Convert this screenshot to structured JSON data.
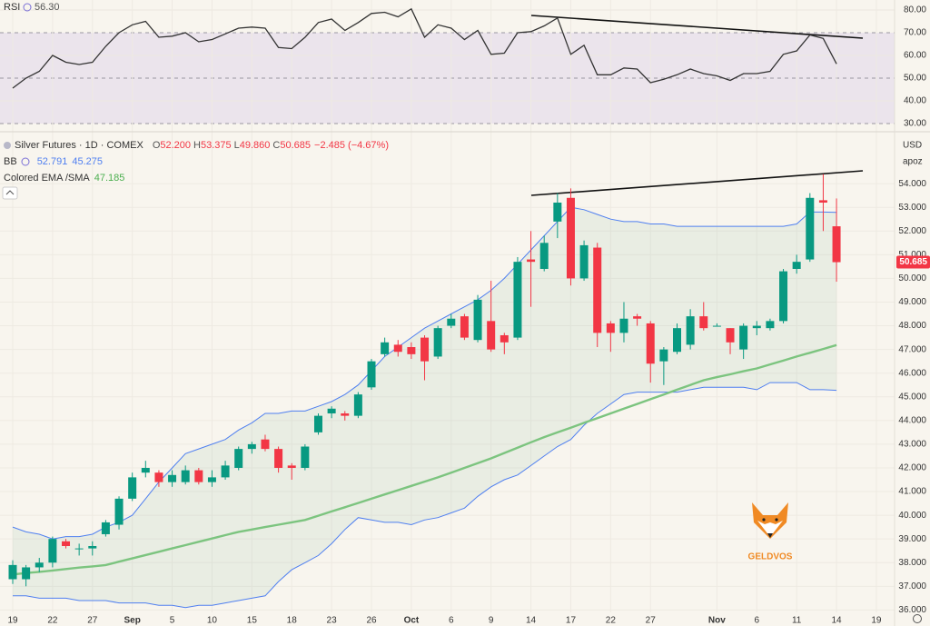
{
  "chart_data": [
    {
      "type": "line",
      "title": "RSI",
      "last_label": "56.30",
      "color": "#333333",
      "band_color": "#ebe4ec",
      "values": [
        45.6,
        50,
        53,
        60,
        57,
        56,
        57,
        64,
        70,
        73.5,
        75,
        68,
        68.5,
        70,
        66,
        67,
        69.5,
        72,
        72.5,
        72,
        63.5,
        63,
        68,
        74.5,
        76,
        71,
        74.5,
        78.5,
        79,
        77,
        80.5,
        68,
        73.5,
        72,
        67,
        71,
        60.5,
        61,
        70,
        70.5,
        73,
        76.5,
        60.5,
        64.5,
        51.5,
        51.5,
        54.5,
        54,
        48,
        49.5,
        51.5,
        54,
        52,
        51,
        49,
        52,
        52,
        53,
        60.5,
        62,
        69,
        67.5,
        56.3,
        null,
        null,
        null
      ],
      "ylim": [
        28.4,
        84.4
      ],
      "yticks": [
        {
          "value": 80,
          "label": "80.00"
        },
        {
          "value": 70,
          "label": "70.00"
        },
        {
          "value": 60,
          "label": "60.00"
        },
        {
          "value": 50,
          "label": "50.00"
        },
        {
          "value": 40,
          "label": "40.00"
        },
        {
          "value": 30,
          "label": "30.00"
        }
      ],
      "grid": true
    },
    {
      "type": "candlestick",
      "title": "Silver Futures · 1D · COMEX",
      "ohlc_letters": [
        "O",
        "H",
        "L",
        "C"
      ],
      "ohlc_labels": [
        "52.200",
        "53.375",
        "49.860",
        "50.685"
      ],
      "change": "−2.485 (−4.67%)",
      "bb_title": "BB",
      "ema_title": "Colored EMA /SMA",
      "currency": "USD",
      "scale_menu": "apoz",
      "watermark": "GELDVOS",
      "up_color": "#089981",
      "down_color": "#f23645",
      "categories": [
        "19",
        null,
        null,
        "22",
        null,
        null,
        "27",
        null,
        null,
        "Sep",
        null,
        null,
        "5",
        null,
        null,
        "10",
        null,
        null,
        "15",
        null,
        null,
        "18",
        null,
        null,
        "23",
        null,
        null,
        "26",
        null,
        null,
        "Oct",
        null,
        null,
        "6",
        null,
        null,
        "9",
        null,
        null,
        "14",
        null,
        null,
        "17",
        null,
        null,
        "22",
        null,
        null,
        "27",
        null,
        null,
        null,
        null,
        "Nov",
        null,
        null,
        "6",
        null,
        null,
        "11",
        null,
        null,
        "14",
        null,
        null,
        "19"
      ],
      "open": [
        37.3,
        37.3,
        37.8,
        38.0,
        38.9,
        38.6,
        38.6,
        39.2,
        39.6,
        40.7,
        41.8,
        41.8,
        41.4,
        41.4,
        41.9,
        41.4,
        41.6,
        42.0,
        42.8,
        43.2,
        42.8,
        42.1,
        42.0,
        43.5,
        44.3,
        44.3,
        44.2,
        45.4,
        46.8,
        47.2,
        47.1,
        47.5,
        46.7,
        48.0,
        48.4,
        47.4,
        48.2,
        47.6,
        47.5,
        50.8,
        50.4,
        52.4,
        53.4,
        50.0,
        51.3,
        48.1,
        47.7,
        48.4,
        48.1,
        46.5,
        46.9,
        47.2,
        48.4,
        48.0,
        47.9,
        47.0,
        47.9,
        47.9,
        48.2,
        50.4,
        50.8,
        53.3,
        52.2,
        null,
        null,
        null
      ],
      "high": [
        38.1,
        37.9,
        38.2,
        39.1,
        39.0,
        38.8,
        38.9,
        39.8,
        40.8,
        41.8,
        42.3,
        41.9,
        41.9,
        42.1,
        42.0,
        41.9,
        42.3,
        42.9,
        43.1,
        43.4,
        42.9,
        42.2,
        43.0,
        44.3,
        44.6,
        44.4,
        45.2,
        46.6,
        47.5,
        47.4,
        47.3,
        47.6,
        48.0,
        48.5,
        48.5,
        49.3,
        49.9,
        47.7,
        50.9,
        52.0,
        51.8,
        53.6,
        53.8,
        51.6,
        51.5,
        48.2,
        49.0,
        48.5,
        48.2,
        47.1,
        48.1,
        48.7,
        49.0,
        48.1,
        47.9,
        48.1,
        48.2,
        48.3,
        50.4,
        51.0,
        53.6,
        54.4,
        53.375,
        null,
        null,
        null
      ],
      "low": [
        37.1,
        37.0,
        37.6,
        37.8,
        38.6,
        38.3,
        38.3,
        39.1,
        39.4,
        40.6,
        41.6,
        41.2,
        41.2,
        41.3,
        41.3,
        41.2,
        41.5,
        41.9,
        42.6,
        42.7,
        41.8,
        41.5,
        41.9,
        43.4,
        44.1,
        44.0,
        44.1,
        45.3,
        46.7,
        46.7,
        46.6,
        45.7,
        46.6,
        47.9,
        47.4,
        47.3,
        46.9,
        46.8,
        47.4,
        48.8,
        50.3,
        51.7,
        49.7,
        49.9,
        47.1,
        46.9,
        47.3,
        48.0,
        45.6,
        45.5,
        46.8,
        47.0,
        47.8,
        48.0,
        46.8,
        46.6,
        47.6,
        47.8,
        48.1,
        50.2,
        50.7,
        52.0,
        49.86,
        null,
        null,
        null
      ],
      "close": [
        37.9,
        37.8,
        38.0,
        39.0,
        38.7,
        38.6,
        38.7,
        39.7,
        40.7,
        41.6,
        42.0,
        41.4,
        41.7,
        41.9,
        41.4,
        41.6,
        42.1,
        42.8,
        43.0,
        42.8,
        42.0,
        42.0,
        42.9,
        44.2,
        44.5,
        44.2,
        45.1,
        46.5,
        47.3,
        46.9,
        46.8,
        46.5,
        47.9,
        48.3,
        47.5,
        49.1,
        47.0,
        47.3,
        50.7,
        50.7,
        51.5,
        53.2,
        50.0,
        51.4,
        47.7,
        47.7,
        48.3,
        48.3,
        46.4,
        47.0,
        47.9,
        48.4,
        47.9,
        48.0,
        47.3,
        48.0,
        48.0,
        48.2,
        50.3,
        50.7,
        53.4,
        53.2,
        50.685,
        null,
        null,
        null
      ],
      "series": [
        {
          "color": "#4f7ff0",
          "values": [
            39.5,
            39.3,
            39.2,
            39.0,
            39.1,
            39.1,
            39.2,
            39.5,
            39.7,
            40.0,
            40.7,
            41.4,
            42.0,
            42.6,
            42.8,
            43.0,
            43.2,
            43.6,
            43.9,
            44.3,
            44.3,
            44.4,
            44.4,
            44.6,
            44.8,
            45.1,
            45.5,
            46.1,
            46.7,
            47.1,
            47.5,
            47.9,
            48.2,
            48.5,
            48.8,
            49.1,
            49.5,
            50.0,
            50.6,
            51.2,
            51.8,
            52.4,
            53.0,
            52.9,
            52.7,
            52.5,
            52.4,
            52.4,
            52.3,
            52.3,
            52.2,
            52.2,
            52.2,
            52.2,
            52.2,
            52.2,
            52.2,
            52.2,
            52.2,
            52.3,
            52.8,
            52.8,
            52.791,
            null,
            null,
            null
          ]
        },
        {
          "color": "#4f7ff0",
          "values": [
            36.6,
            36.6,
            36.5,
            36.5,
            36.5,
            36.4,
            36.4,
            36.4,
            36.3,
            36.3,
            36.3,
            36.2,
            36.2,
            36.1,
            36.2,
            36.2,
            36.3,
            36.4,
            36.5,
            36.6,
            37.2,
            37.7,
            38.0,
            38.3,
            38.8,
            39.4,
            39.9,
            39.8,
            39.7,
            39.7,
            39.6,
            39.8,
            39.9,
            40.1,
            40.3,
            40.8,
            41.2,
            41.5,
            41.7,
            42.1,
            42.5,
            42.9,
            43.2,
            43.8,
            44.3,
            44.7,
            45.1,
            45.2,
            45.2,
            45.2,
            45.2,
            45.3,
            45.4,
            45.4,
            45.4,
            45.4,
            45.3,
            45.6,
            45.6,
            45.6,
            45.3,
            45.3,
            45.275,
            null,
            null,
            null
          ]
        },
        {
          "color": "#7cc47f",
          "values": [
            37.5,
            37.56,
            37.61,
            37.67,
            37.73,
            37.79,
            37.84,
            37.9,
            38.04,
            38.18,
            38.32,
            38.46,
            38.6,
            38.74,
            38.88,
            39.02,
            39.16,
            39.3,
            39.4,
            39.5,
            39.6,
            39.7,
            39.8,
            39.98,
            40.16,
            40.34,
            40.52,
            40.7,
            40.88,
            41.06,
            41.24,
            41.42,
            41.6,
            41.8,
            42.0,
            42.2,
            42.4,
            42.63,
            42.85,
            43.08,
            43.3,
            43.5,
            43.7,
            43.9,
            44.1,
            44.3,
            44.5,
            44.7,
            44.9,
            45.1,
            45.3,
            45.5,
            45.7,
            45.83,
            45.95,
            46.08,
            46.2,
            46.37,
            46.53,
            46.7,
            46.86,
            47.02,
            47.185,
            null,
            null,
            null
          ]
        }
      ],
      "ylim": [
        35.9,
        56.0
      ],
      "yticks": [
        {
          "value": 54,
          "label": "54.000"
        },
        {
          "value": 53,
          "label": "53.000"
        },
        {
          "value": 52,
          "label": "52.000"
        },
        {
          "value": 51,
          "label": "51.000"
        },
        {
          "value": 50,
          "label": "50.000"
        },
        {
          "value": 49,
          "label": "49.000"
        },
        {
          "value": 48,
          "label": "48.000"
        },
        {
          "value": 47,
          "label": "47.000"
        },
        {
          "value": 46,
          "label": "46.000"
        },
        {
          "value": 45,
          "label": "45.000"
        },
        {
          "value": 44,
          "label": "44.000"
        },
        {
          "value": 43,
          "label": "43.000"
        },
        {
          "value": 42,
          "label": "42.000"
        },
        {
          "value": 41,
          "label": "41.000"
        },
        {
          "value": 40,
          "label": "40.000"
        },
        {
          "value": 39,
          "label": "39.000"
        },
        {
          "value": 38,
          "label": "38.000"
        },
        {
          "value": 37,
          "label": "37.000"
        },
        {
          "value": 36,
          "label": "36.000"
        }
      ],
      "grid": true
    }
  ]
}
